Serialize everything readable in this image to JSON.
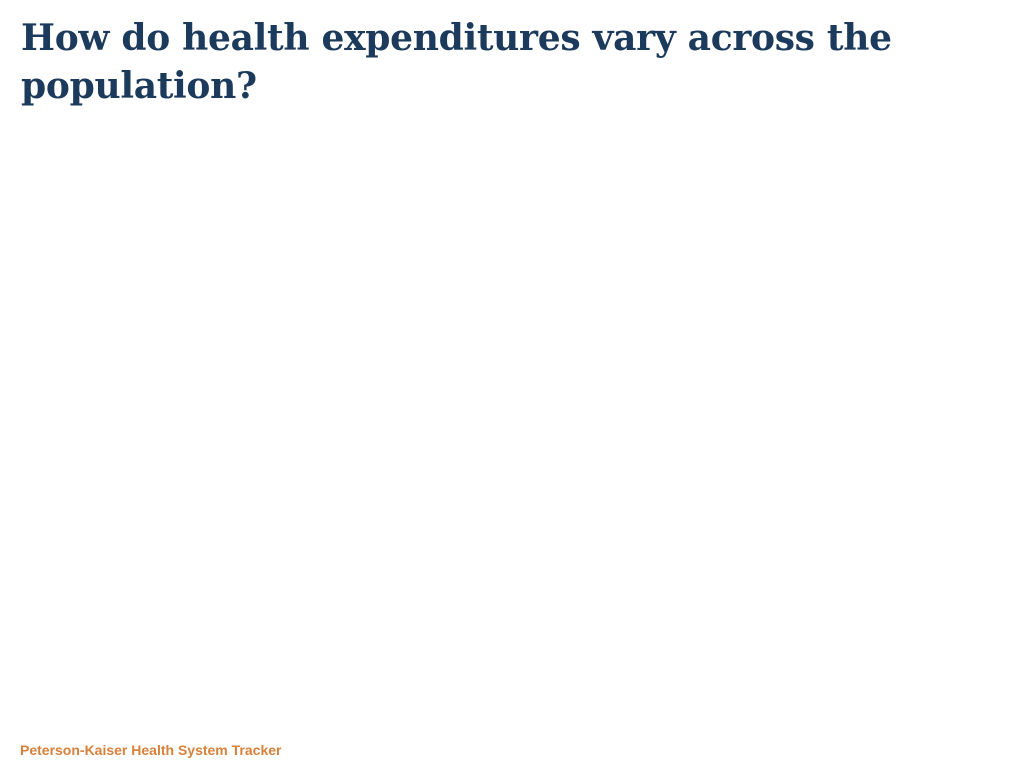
{
  "slide": {
    "title": "How do health expenditures vary across the population?",
    "footer": "Peterson-Kaiser Health System Tracker"
  },
  "colors": {
    "title": "#1b3a5c",
    "footer": "#d9803a",
    "background": "#ffffff"
  }
}
